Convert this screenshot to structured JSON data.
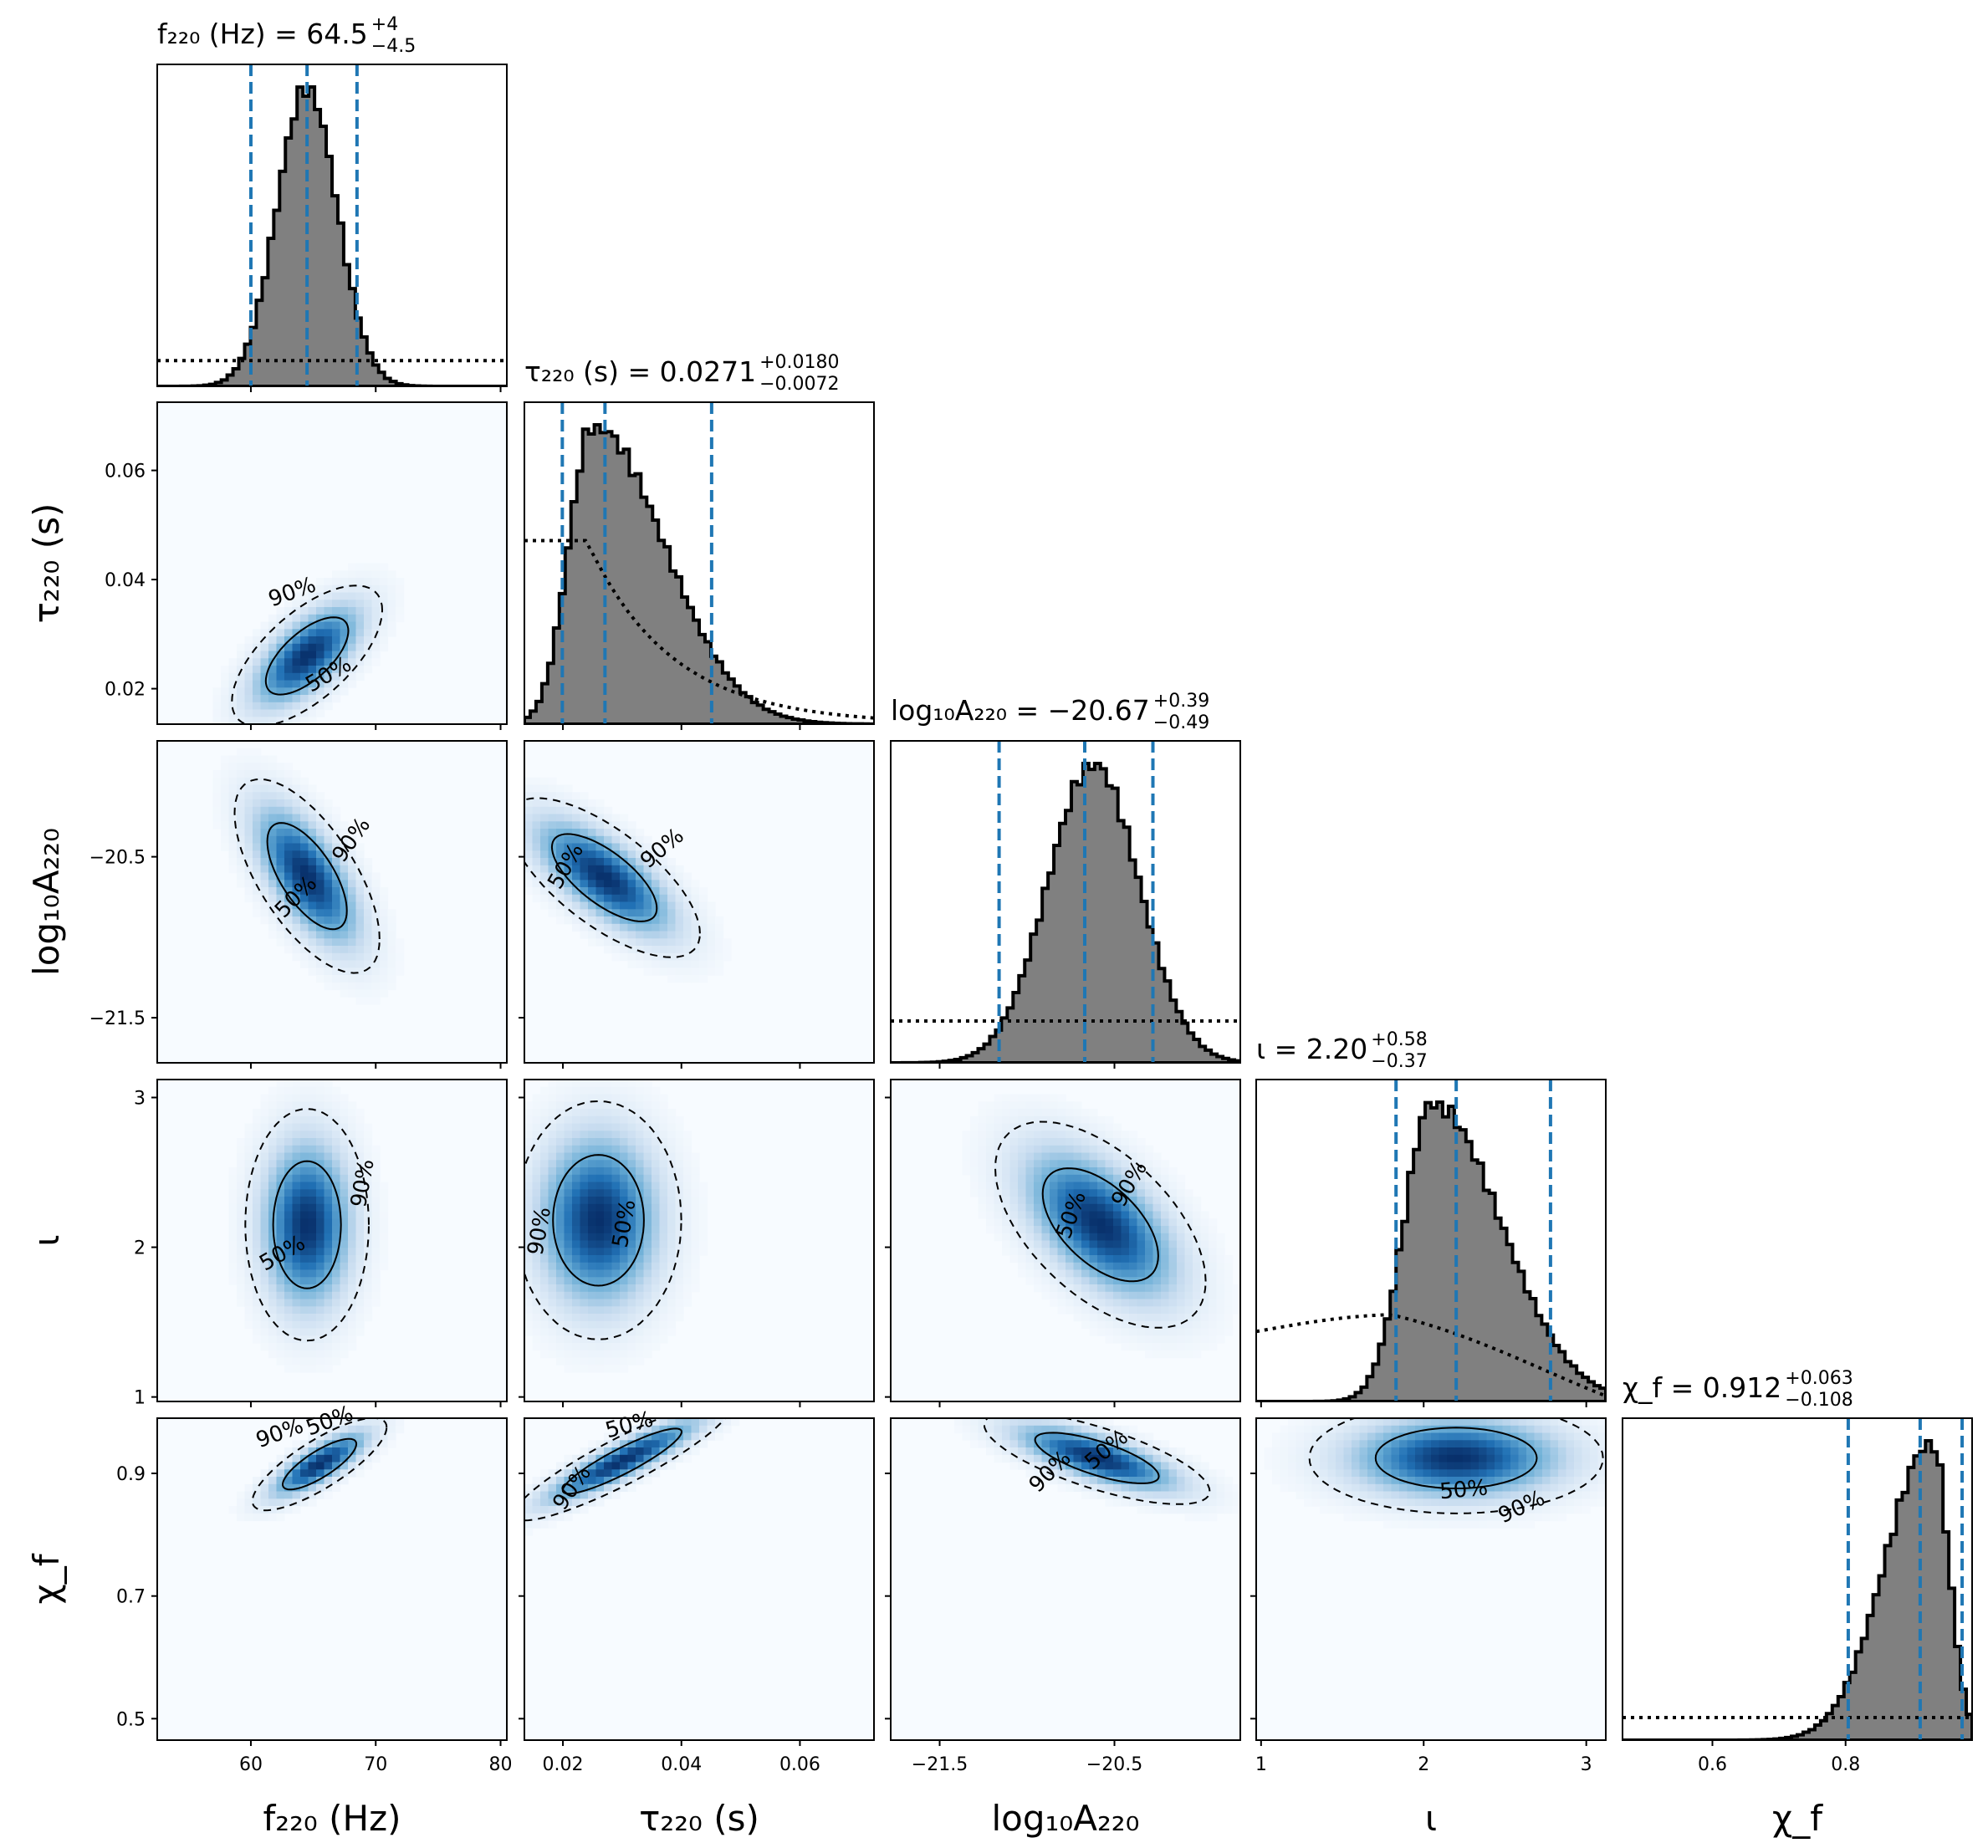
{
  "chart_data": {
    "type": "corner",
    "parameters": [
      {
        "key": "f220",
        "title": "f₂₂₀ (Hz) = 64.5",
        "title_sup": "+4",
        "title_sub": "−4.5",
        "axis_label": "f₂₂₀ (Hz)",
        "median": 64.5,
        "plus": 4,
        "minus": 4.5,
        "quantiles": [
          60.0,
          64.5,
          68.5
        ],
        "range": [
          52.5,
          80.5
        ],
        "ticks": [
          60,
          70,
          80
        ],
        "tick_labels": [
          "60",
          "70",
          "80"
        ]
      },
      {
        "key": "tau220",
        "title": "τ₂₂₀ (s) = 0.0271",
        "title_sup": "+0.0180",
        "title_sub": "−0.0072",
        "axis_label": "τ₂₂₀ (s)",
        "median": 0.0271,
        "plus": 0.018,
        "minus": 0.0072,
        "quantiles": [
          0.0199,
          0.0271,
          0.0451
        ],
        "range": [
          0.0135,
          0.0725
        ],
        "ticks": [
          0.02,
          0.04,
          0.06
        ],
        "tick_labels": [
          "0.02",
          "0.04",
          "0.06"
        ]
      },
      {
        "key": "logA220",
        "title": "log₁₀A₂₂₀ = −20.67",
        "title_sup": "+0.39",
        "title_sub": "−0.49",
        "axis_label": "log₁₀A₂₂₀",
        "median": -20.67,
        "plus": 0.39,
        "minus": 0.49,
        "quantiles": [
          -21.16,
          -20.67,
          -20.28
        ],
        "range": [
          -21.78,
          -19.78
        ],
        "ticks": [
          -21.5,
          -20.5
        ],
        "tick_labels": [
          "−21.5",
          "−20.5"
        ]
      },
      {
        "key": "iota",
        "title": "ι = 2.20",
        "title_sup": "+0.58",
        "title_sub": "−0.37",
        "axis_label": "ι",
        "median": 2.2,
        "plus": 0.58,
        "minus": 0.37,
        "quantiles": [
          1.83,
          2.2,
          2.78
        ],
        "range": [
          0.97,
          3.12
        ],
        "ticks": [
          1,
          2,
          3
        ],
        "tick_labels": [
          "1",
          "2",
          "3"
        ]
      },
      {
        "key": "chif",
        "title": "χ_f = 0.912",
        "title_sup": "+0.063",
        "title_sub": "−0.108",
        "axis_label": "χ_f",
        "median": 0.912,
        "plus": 0.063,
        "minus": 0.108,
        "quantiles": [
          0.804,
          0.912,
          0.975
        ],
        "range": [
          0.465,
          0.99
        ],
        "ticks": [
          0.5,
          0.7,
          0.9
        ],
        "tick_labels": [
          "0.5",
          "0.7",
          "0.9"
        ],
        "xticks": [
          0.6,
          0.8
        ],
        "xtick_labels": [
          "0.6",
          "0.8"
        ]
      }
    ],
    "diagonal": {
      "histogram_color": "#808080",
      "quantile_line_color": "#1f77b4",
      "prior_line": "dotted"
    },
    "off_diagonal": {
      "colormap": "Blues",
      "contour_levels": [
        "50%",
        "90%"
      ]
    },
    "gaussians": {
      "f220": {
        "mu": 64.5,
        "sd": 2.4
      },
      "tau220": {
        "mode": 0.025,
        "sdl": 0.004,
        "sdr": 0.012
      },
      "logA220": {
        "mu": -20.62,
        "sd": 0.26
      },
      "iota": {
        "mode": 2.05,
        "sdl": 0.17,
        "sdr": 0.42
      },
      "chif": {
        "mode": 0.93,
        "sdl": 0.07,
        "sdr": 0.025
      }
    },
    "pairs": [
      {
        "x": "f220",
        "y": "tau220",
        "center": [
          64.5,
          0.026
        ],
        "sx": 2.8,
        "sy": 0.006,
        "rho": 0.65,
        "labels": [
          {
            "text": "90%",
            "at": [
              63.5,
              0.0365
            ],
            "rot": -20
          },
          {
            "text": "50%",
            "at": [
              66.5,
              0.0215
            ],
            "rot": -30
          }
        ]
      },
      {
        "x": "f220",
        "y": "logA220",
        "center": [
          64.5,
          -20.62
        ],
        "sx": 2.7,
        "sy": 0.28,
        "rho": -0.65,
        "labels": [
          {
            "text": "90%",
            "at": [
              68.5,
              -20.42
            ],
            "rot": -55
          },
          {
            "text": "50%",
            "at": [
              64.0,
              -20.78
            ],
            "rot": -45
          }
        ]
      },
      {
        "x": "f220",
        "y": "iota",
        "center": [
          64.5,
          2.15
        ],
        "sx": 2.3,
        "sy": 0.36,
        "rho": 0.0,
        "labels": [
          {
            "text": "90%",
            "at": [
              69.5,
              2.42
            ],
            "rot": -80
          },
          {
            "text": "50%",
            "at": [
              62.8,
              1.92
            ],
            "rot": -30
          }
        ]
      },
      {
        "x": "f220",
        "y": "chif",
        "center": [
          65.5,
          0.915
        ],
        "sx": 2.5,
        "sy": 0.035,
        "rho": 0.8,
        "labels": [
          {
            "text": "90%",
            "at": [
              62.5,
              0.955
            ],
            "rot": -20
          },
          {
            "text": "50%",
            "at": [
              66.5,
              0.975
            ],
            "rot": -20
          }
        ]
      },
      {
        "x": "tau220",
        "y": "logA220",
        "center": [
          0.027,
          -20.63
        ],
        "sx": 0.0075,
        "sy": 0.23,
        "rho": -0.7,
        "labels": [
          {
            "text": "90%",
            "at": [
              0.0375,
              -20.48
            ],
            "rot": -40
          },
          {
            "text": "50%",
            "at": [
              0.0215,
              -20.58
            ],
            "rot": -60
          }
        ]
      },
      {
        "x": "tau220",
        "y": "iota",
        "center": [
          0.026,
          2.18
        ],
        "sx": 0.0065,
        "sy": 0.37,
        "rho": 0.0,
        "labels": [
          {
            "text": "90%",
            "at": [
              0.0172,
              2.1
            ],
            "rot": -80
          },
          {
            "text": "50%",
            "at": [
              0.0315,
              2.15
            ],
            "rot": -80
          }
        ]
      },
      {
        "x": "tau220",
        "y": "chif",
        "center": [
          0.03,
          0.92
        ],
        "sx": 0.0085,
        "sy": 0.045,
        "rho": 0.9,
        "labels": [
          {
            "text": "50%",
            "at": [
              0.0315,
              0.968
            ],
            "rot": -15
          },
          {
            "text": "90%",
            "at": [
              0.0225,
              0.87
            ],
            "rot": -55
          }
        ]
      },
      {
        "x": "logA220",
        "y": "iota",
        "center": [
          -20.58,
          2.15
        ],
        "sx": 0.28,
        "sy": 0.32,
        "rho": -0.55,
        "labels": [
          {
            "text": "90%",
            "at": [
              -20.38,
              2.4
            ],
            "rot": -60
          },
          {
            "text": "50%",
            "at": [
              -20.71,
              2.2
            ],
            "rot": -70
          }
        ]
      },
      {
        "x": "logA220",
        "y": "chif",
        "center": [
          -20.6,
          0.925
        ],
        "sx": 0.3,
        "sy": 0.035,
        "rho": -0.72,
        "labels": [
          {
            "text": "50%",
            "at": [
              -20.52,
              0.93
            ],
            "rot": -40
          },
          {
            "text": "90%",
            "at": [
              -20.84,
              0.895
            ],
            "rot": -45
          }
        ]
      },
      {
        "x": "iota",
        "y": "chif",
        "center": [
          2.2,
          0.925
        ],
        "sx": 0.42,
        "sy": 0.042,
        "rho": 0.0,
        "labels": [
          {
            "text": "50%",
            "at": [
              2.25,
              0.862
            ],
            "rot": -5
          },
          {
            "text": "90%",
            "at": [
              2.62,
              0.835
            ],
            "rot": -25
          }
        ]
      }
    ]
  }
}
